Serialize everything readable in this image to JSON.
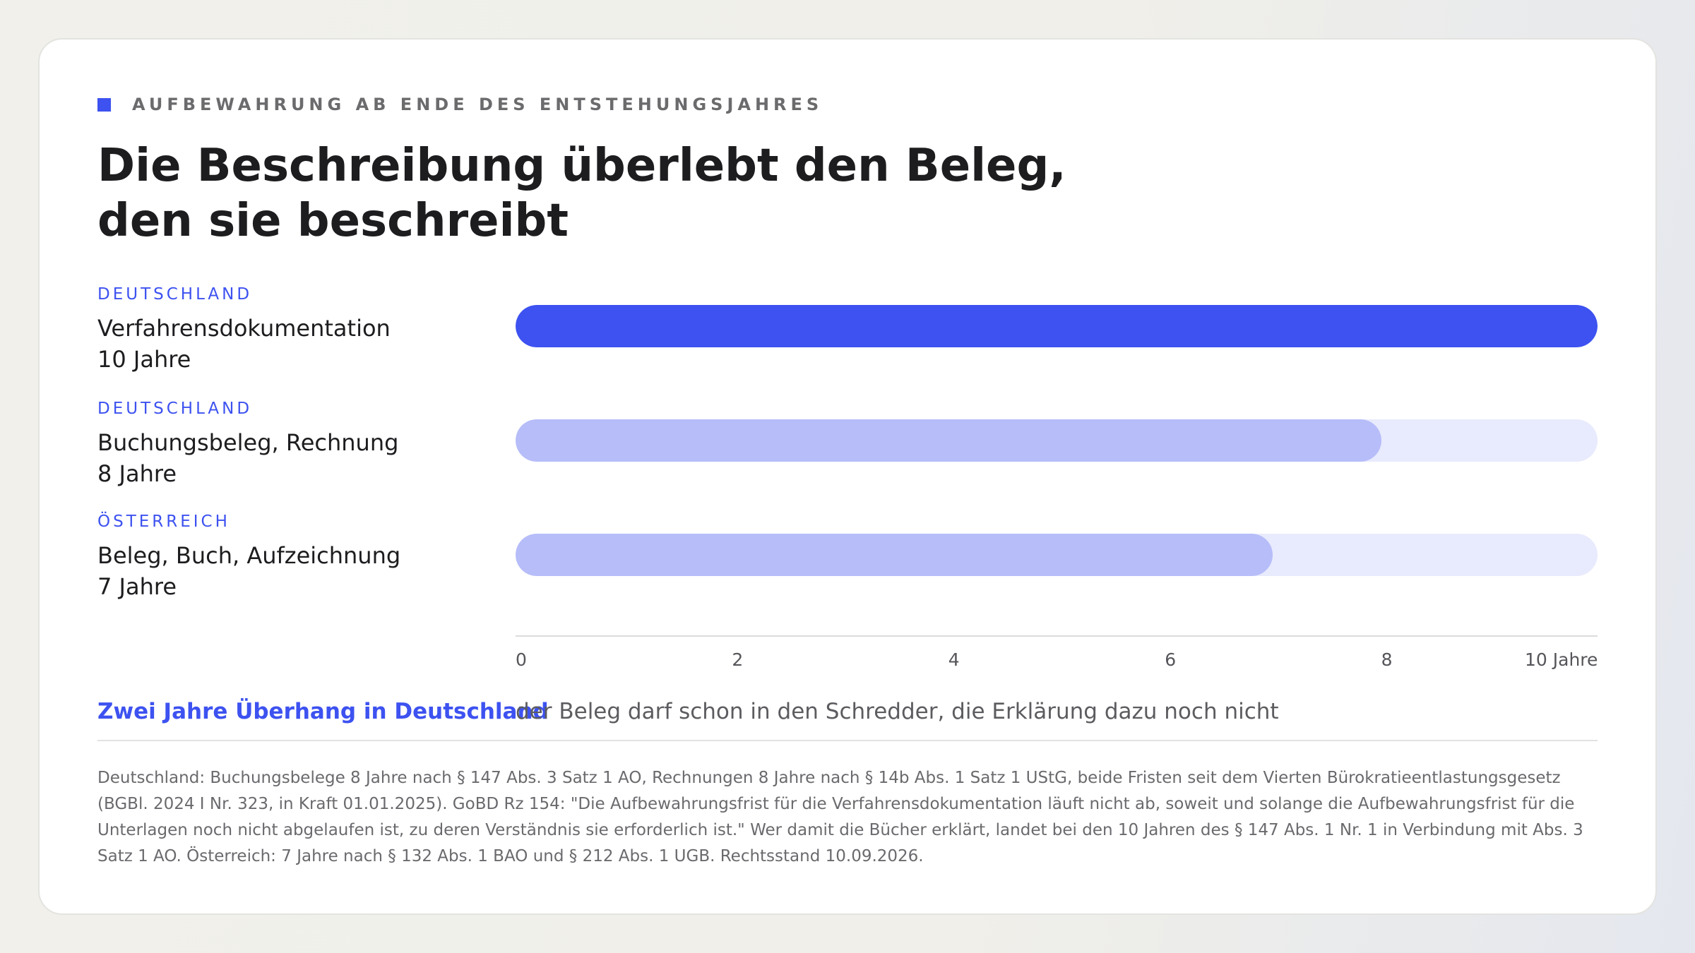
{
  "eyebrow": "AUFBEWAHRUNG AB ENDE DES ENTSTEHUNGSJAHRES",
  "headline": {
    "line1": "Die Beschreibung überlebt den Beleg,",
    "line2": "den sie beschreibt"
  },
  "colors": {
    "accent": "#3d52f0",
    "bar_secondary": "#b6bdf9",
    "track": "#e8eafd"
  },
  "chart_data": {
    "type": "bar",
    "orientation": "horizontal",
    "xlim": [
      0,
      10
    ],
    "x_ticks": [
      "0",
      "2",
      "4",
      "6",
      "8",
      "10 Jahre"
    ],
    "x_tick_values": [
      0,
      2,
      4,
      6,
      8,
      10
    ],
    "grid": false,
    "rows": [
      {
        "country": "DEUTSCHLAND",
        "label": "Verfahrensdokumentation",
        "value_label": "10 Jahre",
        "value": 10,
        "color": "#3d52f0"
      },
      {
        "country": "DEUTSCHLAND",
        "label": "Buchungsbeleg, Rechnung",
        "value_label": "8 Jahre",
        "value": 8,
        "color": "#b6bdf9"
      },
      {
        "country": "ÖSTERREICH",
        "label": "Beleg, Buch, Aufzeichnung",
        "value_label": "7 Jahre",
        "value": 7,
        "color": "#b6bdf9"
      }
    ]
  },
  "takeaway": {
    "head": "Zwei Jahre Überhang in Deutschland",
    "text": "der Beleg darf schon in den Schredder, die Erklärung dazu noch nicht"
  },
  "footnote": "Deutschland: Buchungsbelege 8 Jahre nach § 147 Abs. 3 Satz 1 AO, Rechnungen 8 Jahre nach § 14b Abs. 1 Satz 1 UStG, beide Fristen seit dem Vierten Bürokratieentlastungsgesetz (BGBl. 2024 I Nr. 323, in Kraft 01.01.2025). GoBD Rz 154: \"Die Aufbewahrungsfrist für die Verfahrensdokumentation läuft nicht ab, soweit und solange die Aufbewahrungsfrist für die Unterlagen noch nicht abgelaufen ist, zu deren Verständnis sie erforderlich ist.\" Wer damit die Bücher erklärt, landet bei den 10 Jahren des § 147 Abs. 1 Nr. 1 in Verbindung mit Abs. 3 Satz 1 AO. Österreich: 7 Jahre nach § 132 Abs. 1 BAO und § 212 Abs. 1 UGB. Rechtsstand 10.09.2026."
}
